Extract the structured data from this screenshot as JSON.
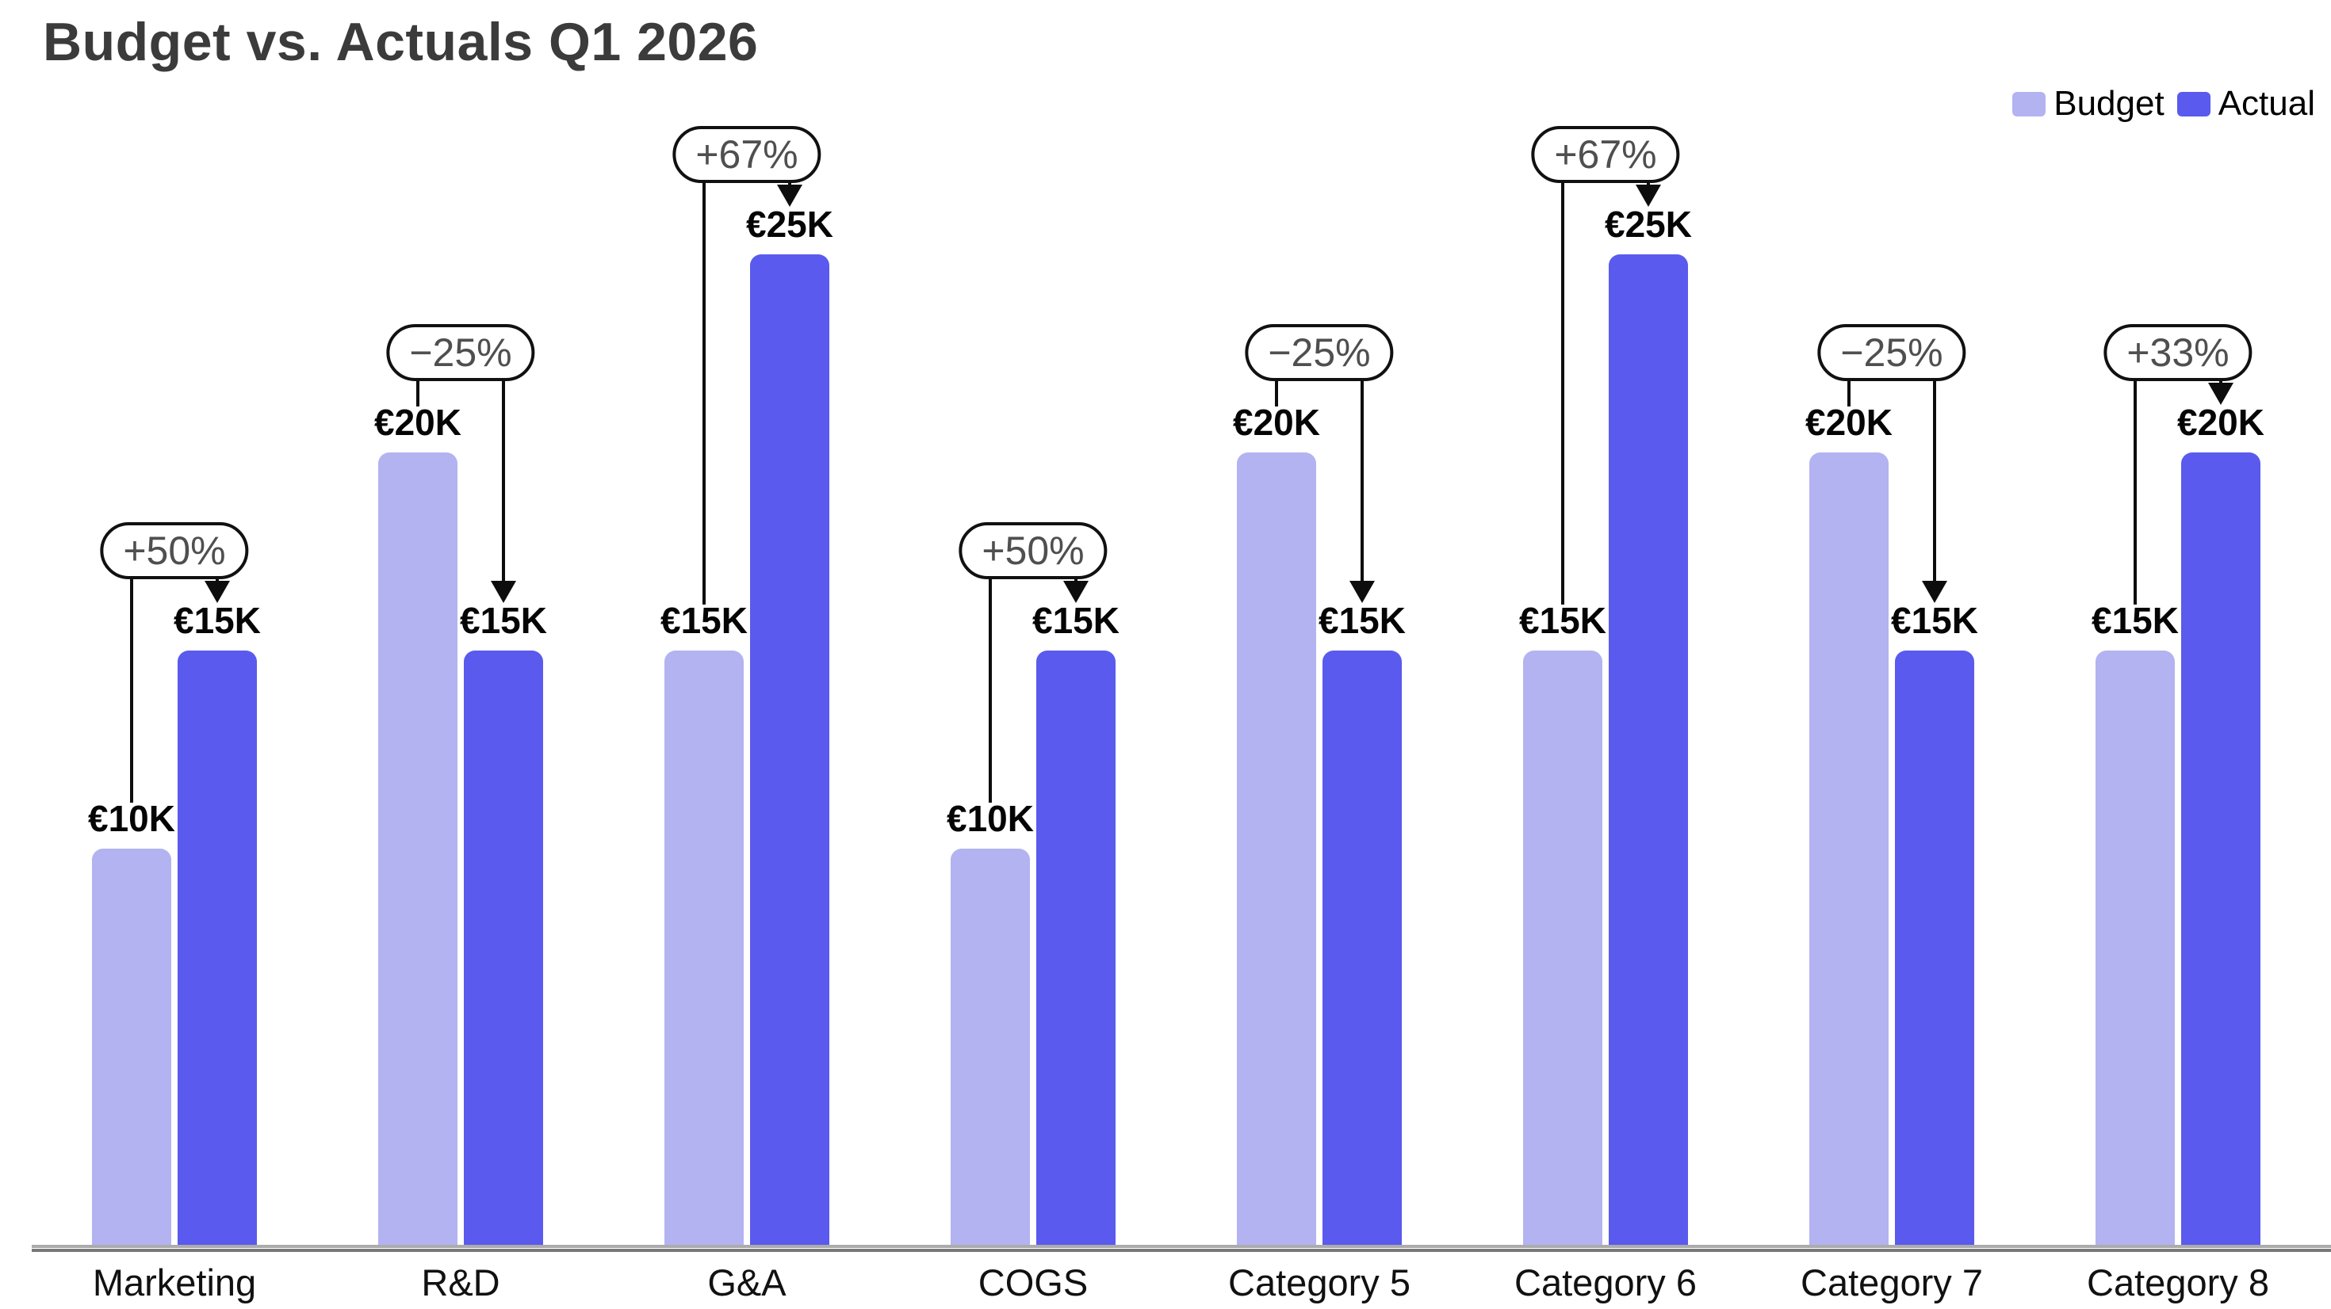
{
  "title": "Budget vs. Actuals Q1 2026",
  "legend": {
    "position": "top-right",
    "items": [
      {
        "label": "Budget",
        "color": "#b3b3f1"
      },
      {
        "label": "Actual",
        "color": "#5a5aee"
      }
    ]
  },
  "chart_data": {
    "type": "bar",
    "title": "Budget vs. Actuals Q1 2026",
    "xlabel": "",
    "ylabel": "",
    "categories": [
      "Marketing",
      "R&D",
      "G&A",
      "COGS",
      "Category 5",
      "Category 6",
      "Category 7",
      "Category 8"
    ],
    "series": [
      {
        "name": "Budget",
        "color": "#b3b3f1",
        "values": [
          10000,
          20000,
          15000,
          10000,
          20000,
          15000,
          20000,
          15000
        ],
        "value_labels": [
          "€10K",
          "€20K",
          "€15K",
          "€10K",
          "€20K",
          "€15K",
          "€20K",
          "€15K"
        ]
      },
      {
        "name": "Actual",
        "color": "#5a5aee",
        "values": [
          15000,
          15000,
          25000,
          15000,
          15000,
          25000,
          15000,
          20000
        ],
        "value_labels": [
          "€15K",
          "€15K",
          "€25K",
          "€15K",
          "€15K",
          "€25K",
          "€15K",
          "€20K"
        ]
      }
    ],
    "annotations": {
      "percent_change": [
        "+50%",
        "−25%",
        "+67%",
        "+50%",
        "−25%",
        "+67%",
        "−25%",
        "+33%"
      ]
    },
    "currency": "EUR",
    "ylim": [
      0,
      27500
    ],
    "grid": false,
    "legend_position": "top-right",
    "colors": {
      "title": "#3b3b3b",
      "axis": "#8f8f8f",
      "connector": "#0d0d0d",
      "annotation_text": "#4f4f4f",
      "annotation_border": "#111111",
      "value_label": "#050505",
      "category_label": "#111111"
    }
  }
}
